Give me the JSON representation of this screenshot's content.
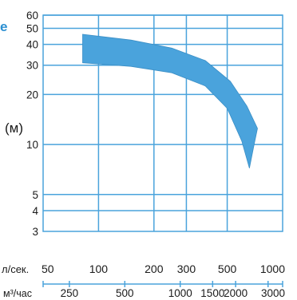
{
  "chart_data": {
    "type": "area",
    "cut_label": "e",
    "ylabel": "(м)",
    "y_scale": "log",
    "ylim": [
      3,
      60
    ],
    "y_ticks": [
      60,
      50,
      40,
      30,
      20,
      10,
      5,
      4,
      3
    ],
    "y_gridlines": [
      60,
      50,
      40,
      30,
      20,
      10,
      5,
      4
    ],
    "x_scale": "log",
    "xlim": [
      50,
      1000
    ],
    "x_gridlines": [
      100,
      200,
      300,
      500
    ],
    "x_axis_lps": {
      "unit_label": "л/сек.",
      "ticks": [
        {
          "value": 50,
          "label": "50"
        },
        {
          "value": 100,
          "label": "100"
        },
        {
          "value": 200,
          "label": "200"
        },
        {
          "value": 300,
          "label": "300"
        },
        {
          "value": 500,
          "label": "500"
        },
        {
          "value": 1000,
          "label": "1000"
        }
      ]
    },
    "x_axis_m3h": {
      "unit_label": "м³/час",
      "ticks": [
        {
          "value": 250,
          "label": "250"
        },
        {
          "value": 500,
          "label": "500"
        },
        {
          "value": 1000,
          "label": "1000"
        },
        {
          "value": 1500,
          "label": "1500"
        },
        {
          "value": 2000,
          "label": "2000"
        },
        {
          "value": 3000,
          "label": "3000"
        }
      ]
    },
    "band": {
      "color": "#4aa3dc",
      "upper": [
        {
          "x": 82,
          "y": 46
        },
        {
          "x": 150,
          "y": 42.5
        },
        {
          "x": 250,
          "y": 38
        },
        {
          "x": 380,
          "y": 32
        },
        {
          "x": 520,
          "y": 24
        },
        {
          "x": 640,
          "y": 17
        },
        {
          "x": 730,
          "y": 12.5
        }
      ],
      "lower": [
        {
          "x": 730,
          "y": 12.5
        },
        {
          "x": 700,
          "y": 10
        },
        {
          "x": 660,
          "y": 7.2
        },
        {
          "x": 600,
          "y": 10.5
        },
        {
          "x": 500,
          "y": 16.5
        },
        {
          "x": 380,
          "y": 22.5
        },
        {
          "x": 250,
          "y": 27
        },
        {
          "x": 150,
          "y": 29.5
        },
        {
          "x": 82,
          "y": 31
        }
      ]
    },
    "grid_color": "#4aa3dc"
  }
}
